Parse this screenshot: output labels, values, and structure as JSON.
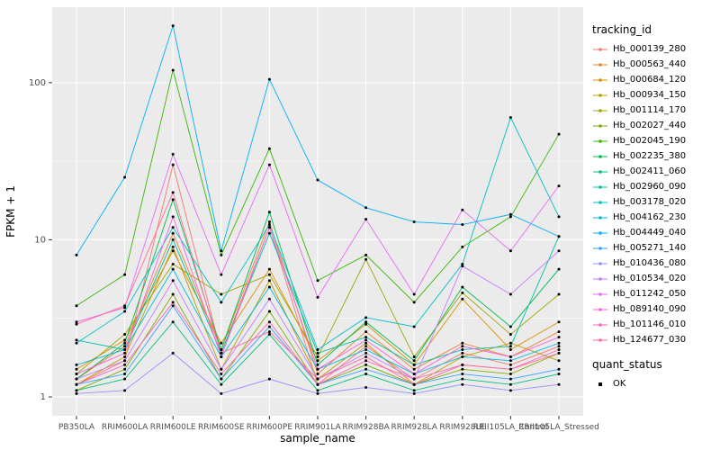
{
  "legend": {
    "tracking_title": "tracking_id",
    "quant_title": "quant_status",
    "quant_items": [
      {
        "label": "OK",
        "color": "#000000"
      }
    ]
  },
  "chart_data": {
    "type": "line",
    "title": "",
    "x_label": "sample_name",
    "y_label": "FPKM + 1",
    "y_scale": "log10",
    "y_ticks": [
      1,
      10,
      100
    ],
    "y_minor": [
      3.1623,
      31.623
    ],
    "ylim": [
      0.76,
      302
    ],
    "panel_bg": "#EBEBEB",
    "grid_color": "#FFFFFF",
    "point_color": "#000000",
    "legend_position": "right",
    "categories": [
      "PB350LA",
      "RRIM600LA",
      "RRIM600LE",
      "RRIM600SE",
      "RRIM600PE",
      "RRIM901LA",
      "RRIM928BA",
      "RRIM928LA",
      "RRIM928LE",
      "RRII105LA_Control",
      "RRII105LA_Stressed"
    ],
    "series": [
      {
        "name": "Hb_000139_280",
        "color": "#F8766D",
        "values": [
          1.2,
          1.7,
          30,
          1.9,
          12,
          1.2,
          2.1,
          1.3,
          1.9,
          1.6,
          2.1
        ]
      },
      {
        "name": "Hb_000563_440",
        "color": "#EA8331",
        "values": [
          1.3,
          2.1,
          11,
          2.0,
          13,
          1.4,
          2.6,
          1.5,
          2.2,
          1.8,
          2.6
        ]
      },
      {
        "name": "Hb_000684_120",
        "color": "#D89000",
        "values": [
          1.5,
          2.3,
          8.5,
          2.2,
          6.5,
          1.7,
          2.9,
          1.6,
          4.2,
          2.0,
          3.0
        ]
      },
      {
        "name": "Hb_000934_150",
        "color": "#C09B00",
        "values": [
          1.2,
          1.8,
          9,
          1.5,
          5.5,
          1.3,
          2.2,
          1.2,
          1.8,
          2.2,
          1.7
        ]
      },
      {
        "name": "Hb_001114_170",
        "color": "#A3A500",
        "values": [
          1.4,
          2.5,
          7,
          4.5,
          6,
          1.8,
          7.5,
          1.8,
          4.6,
          2.5,
          4.5
        ]
      },
      {
        "name": "Hb_002027_440",
        "color": "#7CAE00",
        "values": [
          1.1,
          1.5,
          4.5,
          1.3,
          3.5,
          1.2,
          1.6,
          1.2,
          1.5,
          1.4,
          1.9
        ]
      },
      {
        "name": "Hb_002045_190",
        "color": "#39B600",
        "values": [
          3.8,
          6,
          120,
          8,
          38,
          5.5,
          8,
          4,
          9,
          14,
          47
        ]
      },
      {
        "name": "Hb_002235_380",
        "color": "#00BB4E",
        "values": [
          1.3,
          2.2,
          18,
          2.0,
          15,
          1.6,
          3.0,
          1.7,
          5.0,
          2.8,
          6.5
        ]
      },
      {
        "name": "Hb_002411_060",
        "color": "#00BF7D",
        "values": [
          1.1,
          1.3,
          3.0,
          1.2,
          2.5,
          1.1,
          1.4,
          1.1,
          1.3,
          1.2,
          1.4
        ]
      },
      {
        "name": "Hb_002960_090",
        "color": "#00C1A3",
        "values": [
          2.3,
          2.0,
          10,
          1.9,
          11,
          1.9,
          2.4,
          1.6,
          2.0,
          2.1,
          10.5
        ]
      },
      {
        "name": "Hb_003178_020",
        "color": "#00BFC4",
        "values": [
          2.2,
          3.5,
          12,
          4.0,
          12.5,
          2.0,
          3.2,
          2.8,
          7.0,
          60,
          14
        ]
      },
      {
        "name": "Hb_004162_230",
        "color": "#00BAE0",
        "values": [
          1.6,
          2.0,
          6.5,
          1.8,
          5.0,
          1.5,
          2.0,
          1.4,
          1.8,
          1.7,
          2.2
        ]
      },
      {
        "name": "Hb_004449_040",
        "color": "#00B0F6",
        "values": [
          8,
          25,
          230,
          8.5,
          105,
          24,
          16,
          13,
          12.5,
          14.5,
          10.5
        ]
      },
      {
        "name": "Hb_005271_140",
        "color": "#35A2FF",
        "values": [
          1.2,
          1.4,
          3.8,
          1.3,
          2.8,
          1.2,
          1.5,
          1.2,
          1.4,
          1.3,
          1.5
        ]
      },
      {
        "name": "Hb_010436_080",
        "color": "#9590FF",
        "values": [
          1.05,
          1.1,
          1.9,
          1.05,
          1.3,
          1.05,
          1.15,
          1.05,
          1.2,
          1.1,
          1.2
        ]
      },
      {
        "name": "Hb_010534_020",
        "color": "#C77CFF",
        "values": [
          1.3,
          1.7,
          5.5,
          1.5,
          4.2,
          1.3,
          1.9,
          1.3,
          6.8,
          4.5,
          8.5
        ]
      },
      {
        "name": "Hb_011242_050",
        "color": "#E76BF3",
        "values": [
          3.0,
          3.7,
          35,
          6.0,
          30,
          4.3,
          13.5,
          4.5,
          15.5,
          8.5,
          22
        ]
      },
      {
        "name": "Hb_089140_090",
        "color": "#FA62DB",
        "values": [
          1.4,
          1.9,
          14,
          1.8,
          12,
          1.5,
          2.3,
          1.4,
          2.1,
          1.8,
          2.4
        ]
      },
      {
        "name": "Hb_101146_010",
        "color": "#FF62BC",
        "values": [
          1.2,
          1.6,
          4.0,
          1.4,
          3.0,
          1.2,
          1.7,
          1.3,
          1.6,
          1.5,
          2.0
        ]
      },
      {
        "name": "Hb_124677_030",
        "color": "#FF6A98",
        "values": [
          2.9,
          3.8,
          20,
          1.9,
          2.6,
          1.3,
          1.8,
          1.2,
          1.6,
          1.5,
          1.9
        ]
      }
    ],
    "quant_status": {
      "title": "quant_status",
      "items": [
        {
          "label": "OK",
          "shape": "point",
          "color": "#000000"
        }
      ]
    }
  }
}
